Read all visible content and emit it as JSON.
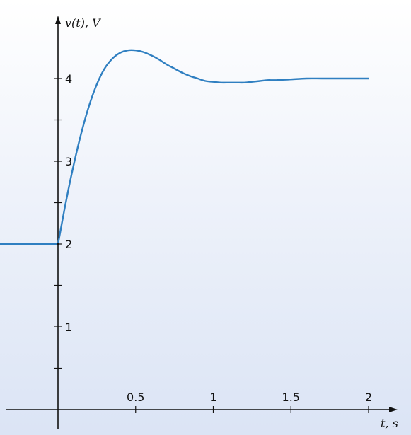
{
  "chart_data": {
    "type": "line",
    "title": "",
    "ylabel": "v(t), V",
    "xlabel": "t, s",
    "xlim": [
      -0.5,
      2.15
    ],
    "ylim": [
      -0.25,
      4.55
    ],
    "x_ticks": [
      {
        "value": 0.5,
        "label": "0.5"
      },
      {
        "value": 1,
        "label": "1"
      },
      {
        "value": 1.5,
        "label": "1.5"
      },
      {
        "value": 2,
        "label": "2"
      }
    ],
    "y_ticks": [
      {
        "value": 0.5,
        "label": ""
      },
      {
        "value": 1,
        "label": "1"
      },
      {
        "value": 1.5,
        "label": ""
      },
      {
        "value": 2,
        "label": "2"
      },
      {
        "value": 2.5,
        "label": ""
      },
      {
        "value": 3,
        "label": "3"
      },
      {
        "value": 3.5,
        "label": ""
      },
      {
        "value": 4,
        "label": "4"
      }
    ],
    "grid": false,
    "series": [
      {
        "color": "#2f7fc1",
        "x": [
          -0.5,
          0,
          0.05,
          0.1,
          0.15,
          0.2,
          0.25,
          0.3,
          0.35,
          0.4,
          0.45,
          0.5,
          0.55,
          0.6,
          0.65,
          0.7,
          0.75,
          0.8,
          0.85,
          0.9,
          0.95,
          1.0,
          1.05,
          1.1,
          1.15,
          1.2,
          1.25,
          1.3,
          1.35,
          1.4,
          1.5,
          1.6,
          1.7,
          1.8,
          1.9,
          2.0
        ],
        "y": [
          2,
          2,
          2.5,
          2.95,
          3.34,
          3.67,
          3.93,
          4.12,
          4.24,
          4.31,
          4.34,
          4.34,
          4.32,
          4.28,
          4.23,
          4.17,
          4.12,
          4.07,
          4.03,
          4.0,
          3.97,
          3.96,
          3.95,
          3.95,
          3.95,
          3.95,
          3.96,
          3.97,
          3.98,
          3.98,
          3.99,
          4.0,
          4.0,
          4.0,
          4.0,
          4.0
        ]
      }
    ]
  }
}
